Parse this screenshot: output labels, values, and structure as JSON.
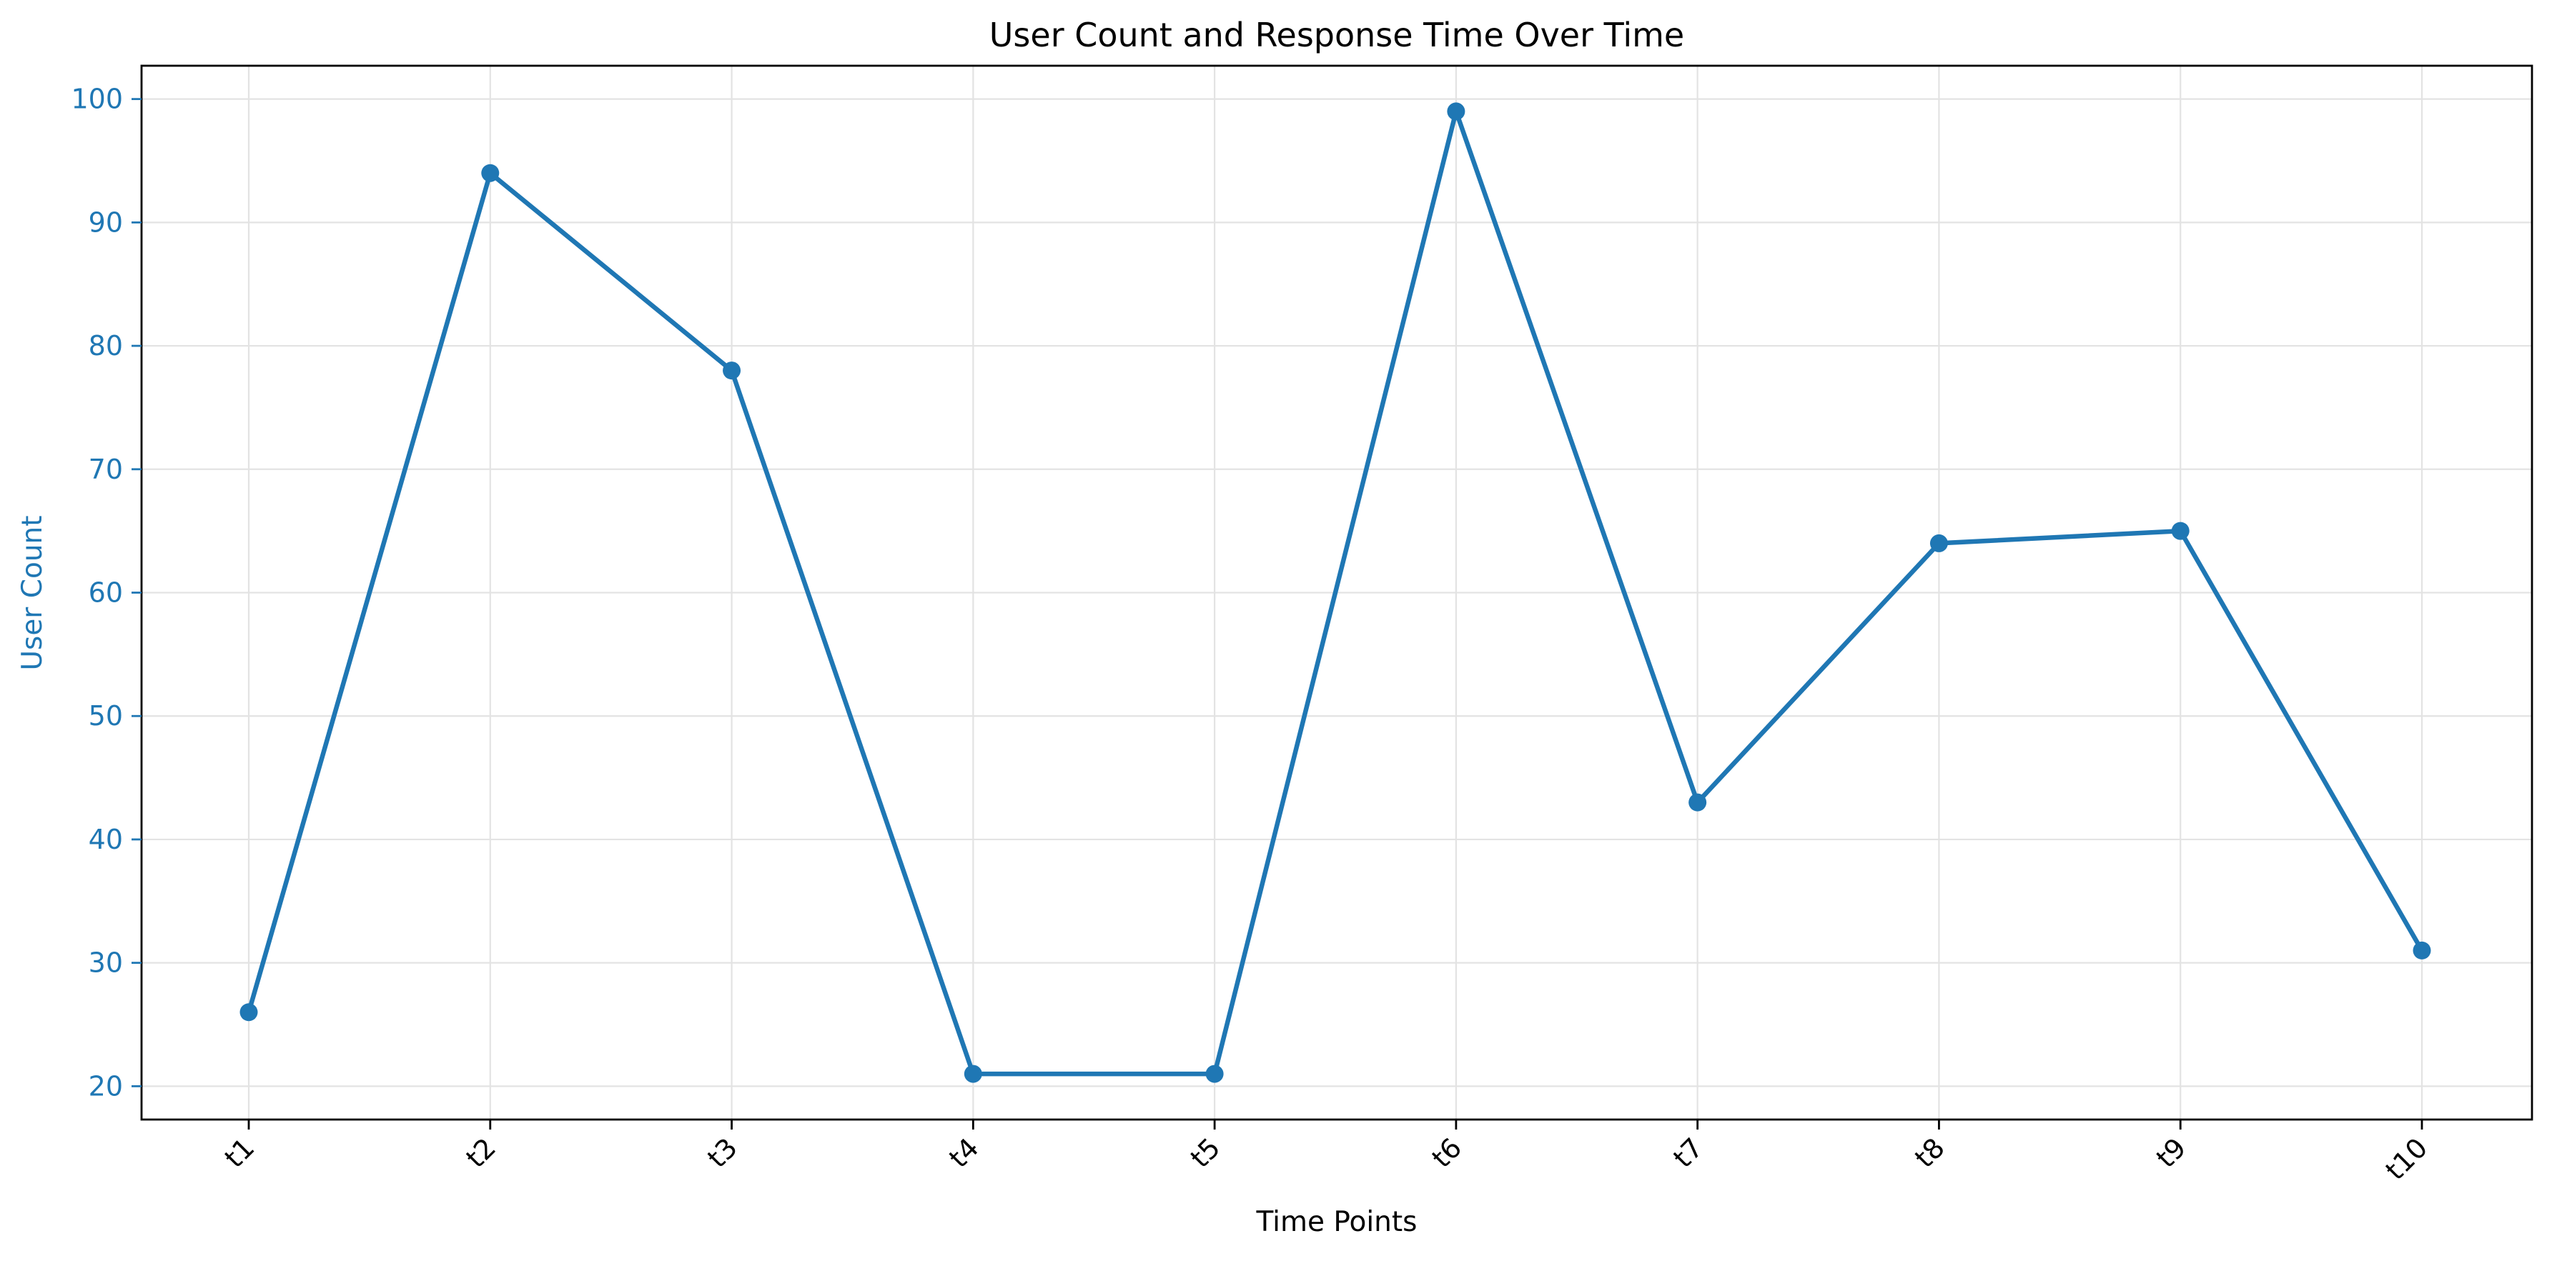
{
  "chart_data": {
    "type": "line",
    "title": "User Count and Response Time Over Time",
    "xlabel": "Time Points",
    "ylabel": "User Count",
    "categories": [
      "t1",
      "t2",
      "t3",
      "t4",
      "t5",
      "t6",
      "t7",
      "t8",
      "t9",
      "t10"
    ],
    "series": [
      {
        "values": [
          26,
          94,
          78,
          21,
          21,
          99,
          43,
          64,
          65,
          31
        ],
        "color": "#1f77b4",
        "marker": "circle"
      }
    ],
    "ylim": [
      17.3,
      102.7
    ],
    "yticks": [
      20,
      30,
      40,
      50,
      60,
      70,
      80,
      90,
      100
    ],
    "grid": true,
    "legend": "none",
    "xtick_rotation": "45 degrees",
    "colors": {
      "series": "#1f77b4",
      "ylabel": "#1f77b4",
      "axis": "#000000",
      "grid": "#e3e3e3"
    }
  }
}
